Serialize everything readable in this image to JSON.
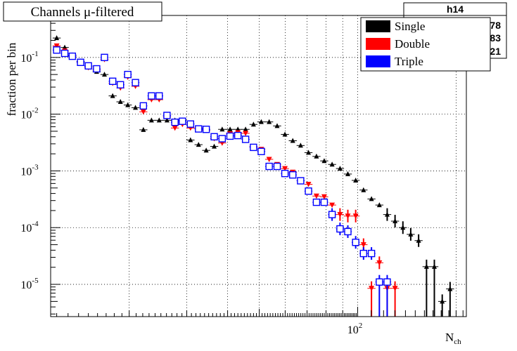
{
  "chart_data": {
    "type": "scatter",
    "title": "Channels μ-filtered",
    "ylabel": "fraction per bin",
    "xlabel_main": "N",
    "xlabel_sub": "ch",
    "x_scale": "log",
    "y_scale": "log",
    "xlim": [
      11.5,
      215
    ],
    "ylim": [
      2.7e-06,
      0.55
    ],
    "x_tick_label": "10",
    "x_tick_label_exp": "2",
    "x_tick_label_value": 100,
    "y_ticks": [
      {
        "base": "10",
        "exp": "-1",
        "value": 0.1
      },
      {
        "base": "10",
        "exp": "-2",
        "value": 0.01
      },
      {
        "base": "10",
        "exp": "-3",
        "value": 0.001
      },
      {
        "base": "10",
        "exp": "-4",
        "value": 0.0001
      },
      {
        "base": "10",
        "exp": "-5",
        "value": 1e-05
      }
    ],
    "grid": true,
    "stats_box": {
      "name": "h14",
      "partial_values": [
        "78",
        "83",
        "21"
      ]
    },
    "legend_position": "top-right",
    "series": [
      {
        "name": "Single",
        "color": "#000000",
        "marker": "triangle-up",
        "points": [
          [
            12.0,
            0.22
          ],
          [
            12.7,
            0.15
          ],
          [
            13.4,
            0.11
          ],
          [
            14.2,
            0.085
          ],
          [
            15.0,
            0.07
          ],
          [
            15.9,
            0.056
          ],
          [
            16.8,
            0.05
          ],
          [
            17.8,
            0.021
          ],
          [
            18.8,
            0.0165
          ],
          [
            19.8,
            0.0145
          ],
          [
            20.9,
            0.013
          ],
          [
            22.1,
            0.0053
          ],
          [
            23.4,
            0.0078
          ],
          [
            24.7,
            0.0078
          ],
          [
            26.1,
            0.0078
          ],
          [
            27.6,
            0.0078
          ],
          [
            29.1,
            0.0078
          ],
          [
            30.8,
            0.0035
          ],
          [
            32.6,
            0.0029
          ],
          [
            34.4,
            0.0023
          ],
          [
            36.4,
            0.0027
          ],
          [
            38.5,
            0.0054
          ],
          [
            40.7,
            0.0054
          ],
          [
            43.0,
            0.0054
          ],
          [
            45.4,
            0.0054
          ],
          [
            48.0,
            0.0066
          ],
          [
            50.7,
            0.0073
          ],
          [
            53.6,
            0.0073
          ],
          [
            56.7,
            0.0062
          ],
          [
            59.9,
            0.0044
          ],
          [
            63.3,
            0.0034
          ],
          [
            66.9,
            0.0028
          ],
          [
            70.7,
            0.0021
          ],
          [
            74.8,
            0.0018
          ],
          [
            79.0,
            0.0015
          ],
          [
            83.5,
            0.0013
          ],
          [
            88.3,
            0.0011
          ],
          [
            93.3,
            0.00088
          ],
          [
            98.6,
            0.00068
          ],
          [
            104.2,
            0.00046
          ],
          [
            110.2,
            0.00032
          ],
          [
            116.5,
            0.00025
          ],
          [
            123.1,
            0.00017
          ],
          [
            130.1,
            0.00013
          ],
          [
            137.5,
            0.0001
          ],
          [
            145.3,
            7.6e-05
          ],
          [
            153.6,
            5.9e-05
          ],
          [
            162.4,
            2.05e-05
          ],
          [
            171.6,
            2.05e-05
          ],
          [
            181.4,
            5e-06
          ],
          [
            191.7,
            8.3e-06
          ]
        ]
      },
      {
        "name": "Double",
        "color": "#ff0000",
        "marker": "triangle-down",
        "points": [
          [
            12.0,
            0.16
          ],
          [
            12.7,
            0.13
          ],
          [
            13.4,
            0.105
          ],
          [
            14.2,
            0.082
          ],
          [
            15.0,
            0.066
          ],
          [
            15.9,
            0.06
          ],
          [
            16.8,
            0.092
          ],
          [
            17.8,
            0.035
          ],
          [
            18.8,
            0.029
          ],
          [
            19.8,
            0.045
          ],
          [
            20.9,
            0.031
          ],
          [
            22.1,
            0.011
          ],
          [
            23.4,
            0.018
          ],
          [
            24.7,
            0.018
          ],
          [
            26.1,
            0.009
          ],
          [
            27.6,
            0.0057
          ],
          [
            29.1,
            0.0066
          ],
          [
            30.8,
            0.0057
          ],
          [
            32.6,
            0.0057
          ],
          [
            34.4,
            0.0052
          ],
          [
            36.4,
            0.0037
          ],
          [
            38.5,
            0.0031
          ],
          [
            40.7,
            0.0045
          ],
          [
            43.0,
            0.0047
          ],
          [
            45.4,
            0.0046
          ],
          [
            48.0,
            0.0027
          ],
          [
            50.7,
            0.0024
          ],
          [
            53.6,
            0.0016
          ],
          [
            56.7,
            0.0013
          ],
          [
            59.9,
            0.0011
          ],
          [
            63.3,
            0.00095
          ],
          [
            66.9,
            0.00067
          ],
          [
            70.7,
            0.00058
          ],
          [
            74.8,
            0.00036
          ],
          [
            79.0,
            0.00035
          ],
          [
            83.5,
            0.00025
          ],
          [
            88.3,
            0.00017
          ],
          [
            93.3,
            0.00016
          ],
          [
            98.6,
            0.00016
          ],
          [
            104.2,
            5e-05
          ],
          [
            110.2,
            8.5e-06
          ],
          [
            116.5,
            2.4e-05
          ],
          [
            123.1,
            8.5e-06
          ],
          [
            130.1,
            8.5e-06
          ]
        ]
      },
      {
        "name": "Triple",
        "color": "#0000ff",
        "marker": "open-square",
        "points": [
          [
            12.0,
            0.135
          ],
          [
            12.7,
            0.118
          ],
          [
            13.4,
            0.105
          ],
          [
            14.2,
            0.082
          ],
          [
            15.0,
            0.071
          ],
          [
            15.9,
            0.063
          ],
          [
            16.8,
            0.1
          ],
          [
            17.8,
            0.038
          ],
          [
            18.8,
            0.033
          ],
          [
            19.8,
            0.05
          ],
          [
            20.9,
            0.036
          ],
          [
            22.1,
            0.014
          ],
          [
            23.4,
            0.021
          ],
          [
            24.7,
            0.021
          ],
          [
            26.1,
            0.0095
          ],
          [
            27.6,
            0.0072
          ],
          [
            29.1,
            0.0075
          ],
          [
            30.8,
            0.0067
          ],
          [
            32.6,
            0.0055
          ],
          [
            34.4,
            0.0054
          ],
          [
            36.4,
            0.004
          ],
          [
            38.5,
            0.0037
          ],
          [
            40.7,
            0.0041
          ],
          [
            43.0,
            0.0042
          ],
          [
            45.4,
            0.0036
          ],
          [
            48.0,
            0.0026
          ],
          [
            50.7,
            0.0022
          ],
          [
            53.6,
            0.0012
          ],
          [
            56.7,
            0.0012
          ],
          [
            59.9,
            0.0009
          ],
          [
            63.3,
            0.00085
          ],
          [
            66.9,
            0.00067
          ],
          [
            70.7,
            0.00044
          ],
          [
            74.8,
            0.00028
          ],
          [
            79.0,
            0.00028
          ],
          [
            83.5,
            0.00017
          ],
          [
            88.3,
            9.5e-05
          ],
          [
            93.3,
            8.5e-05
          ],
          [
            98.6,
            5.5e-05
          ],
          [
            104.2,
            3.5e-05
          ],
          [
            110.2,
            3.5e-05
          ],
          [
            116.5,
            1.1e-05
          ],
          [
            123.1,
            1.1e-05
          ]
        ]
      }
    ]
  }
}
